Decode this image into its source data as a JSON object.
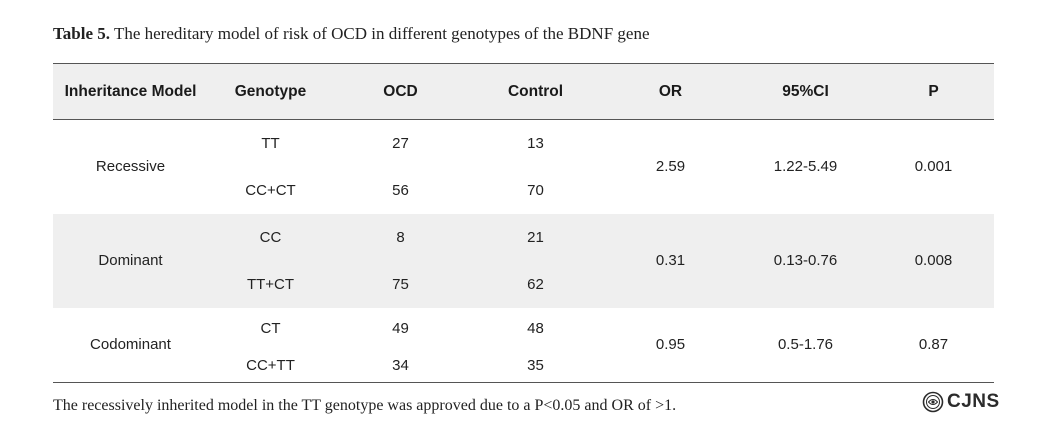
{
  "caption": {
    "label": "Table 5.",
    "text": " The hereditary model of risk of OCD in different genotypes of the BDNF gene"
  },
  "table": {
    "headers": [
      "Inheritance Model",
      "Genotype",
      "OCD",
      "Control",
      "OR",
      "95%CI",
      "P"
    ],
    "groups": [
      {
        "model": "Recessive",
        "rows": [
          {
            "genotype": "TT",
            "ocd": "27",
            "control": "13"
          },
          {
            "genotype": "CC+CT",
            "ocd": "56",
            "control": "70"
          }
        ],
        "or": "2.59",
        "ci": "1.22-5.49",
        "p": "0.001"
      },
      {
        "model": "Dominant",
        "rows": [
          {
            "genotype": "CC",
            "ocd": "8",
            "control": "21"
          },
          {
            "genotype": "TT+CT",
            "ocd": "75",
            "control": "62"
          }
        ],
        "or": "0.31",
        "ci": "0.13-0.76",
        "p": "0.008"
      },
      {
        "model": "Codominant",
        "rows": [
          {
            "genotype": "CT",
            "ocd": "49",
            "control": "48"
          },
          {
            "genotype": "CC+TT",
            "ocd": "34",
            "control": "35"
          }
        ],
        "or": "0.95",
        "ci": "0.5-1.76",
        "p": "0.87"
      }
    ]
  },
  "footnote": "The recessively inherited model in the TT genotype was approved due to a P<0.05 and OR of >1.",
  "logo": {
    "text": "CJNS",
    "icon": "cjns-seal-icon",
    "color": "#2b2b2b"
  },
  "colors": {
    "header_bg": "#efefef",
    "band_bg": "#efefef",
    "rule": "#555555"
  }
}
